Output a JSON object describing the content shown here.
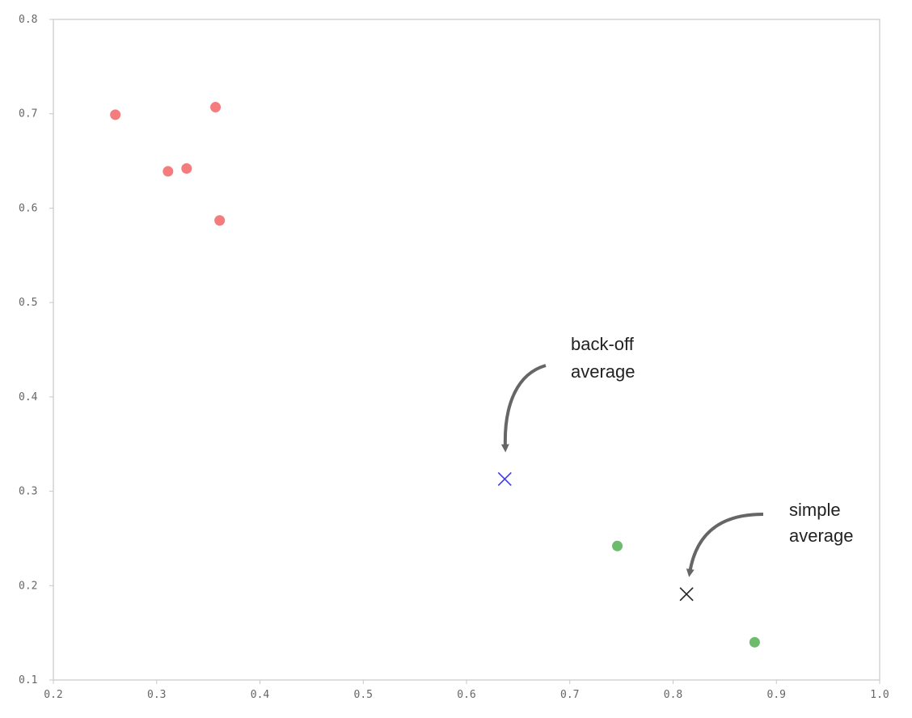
{
  "chart_data": {
    "type": "scatter",
    "title": "",
    "xlabel": "",
    "ylabel": "",
    "xlim": [
      0.2,
      1.0
    ],
    "ylim": [
      0.1,
      0.8
    ],
    "x_ticks": [
      "0.2",
      "0.3",
      "0.4",
      "0.5",
      "0.6",
      "0.7",
      "0.8",
      "0.9",
      "1.0"
    ],
    "y_ticks": [
      "0.1",
      "0.2",
      "0.3",
      "0.4",
      "0.5",
      "0.6",
      "0.7",
      "0.8"
    ],
    "grid": false,
    "legend": "none",
    "series": [
      {
        "color": "#f47c7c",
        "marker": "circle",
        "points": [
          {
            "x": 0.26,
            "y": 0.699
          },
          {
            "x": 0.311,
            "y": 0.639
          },
          {
            "x": 0.329,
            "y": 0.642
          },
          {
            "x": 0.357,
            "y": 0.707
          },
          {
            "x": 0.361,
            "y": 0.587
          }
        ]
      },
      {
        "color": "#6dbb6d",
        "marker": "circle",
        "points": [
          {
            "x": 0.746,
            "y": 0.242
          },
          {
            "x": 0.879,
            "y": 0.14
          }
        ]
      },
      {
        "color": "#3a3aff",
        "marker": "x",
        "points": [
          {
            "x": 0.637,
            "y": 0.313
          }
        ]
      },
      {
        "color": "#222222",
        "marker": "x",
        "points": [
          {
            "x": 0.813,
            "y": 0.191
          }
        ]
      }
    ],
    "annotations": [
      {
        "lines": [
          "back-off",
          "average"
        ],
        "target": {
          "x": 0.637,
          "y": 0.313
        }
      },
      {
        "lines": [
          "simple",
          "average"
        ],
        "target": {
          "x": 0.813,
          "y": 0.191
        }
      }
    ]
  }
}
